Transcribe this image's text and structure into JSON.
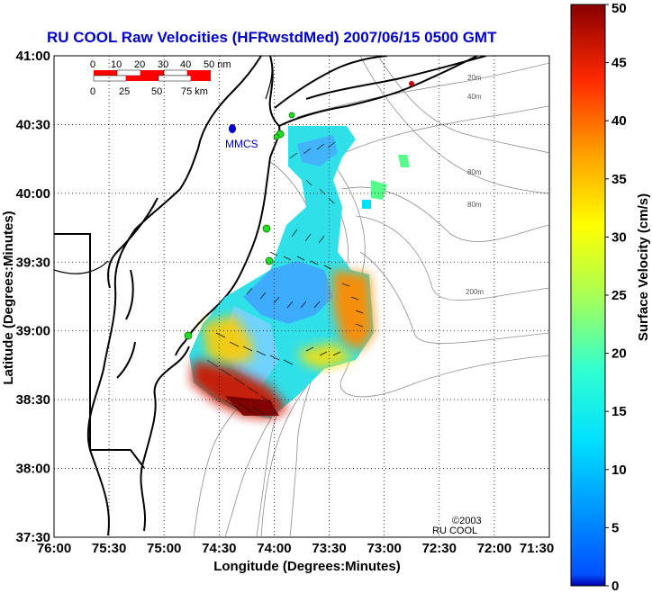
{
  "title": "RU COOL Raw Velocities (HFRwstdMed) 2007/06/15 0500 GMT",
  "axes": {
    "xlabel": "Longitude (Degrees:Minutes)",
    "ylabel": "Latitude (Degrees:Minutes)",
    "x_ticks": [
      "76:00",
      "75:30",
      "75:00",
      "74:30",
      "74:00",
      "73:30",
      "73:00",
      "72:30",
      "72:00",
      "71:30"
    ],
    "y_ticks": [
      "41:00",
      "40:30",
      "40:00",
      "39:30",
      "39:00",
      "38:30",
      "38:00",
      "37:30"
    ],
    "grid": "dotted"
  },
  "colorbar": {
    "label": "Surface Velocity (cm/s)",
    "ticks": [
      "0",
      "5",
      "10",
      "15",
      "20",
      "25",
      "30",
      "35",
      "40",
      "45",
      "50"
    ],
    "range": [
      0,
      50
    ],
    "colormap": "jet"
  },
  "scale_bar": {
    "nm_labels": [
      "0",
      "10",
      "20",
      "30",
      "40",
      "50 nm"
    ],
    "km_labels": [
      "0",
      "25",
      "50",
      "75 km"
    ]
  },
  "site_label": "MMCS",
  "depth_labels": [
    "20m",
    "40m",
    "80m",
    "80m",
    "200m"
  ],
  "credit": {
    "line1": "©2003",
    "line2": "RU COOL"
  },
  "colors": {
    "title": "#0000cc",
    "site_marker": "#0000cc",
    "stations": "#22dd22",
    "coast": "#000000",
    "bathymetry": "#888888"
  }
}
